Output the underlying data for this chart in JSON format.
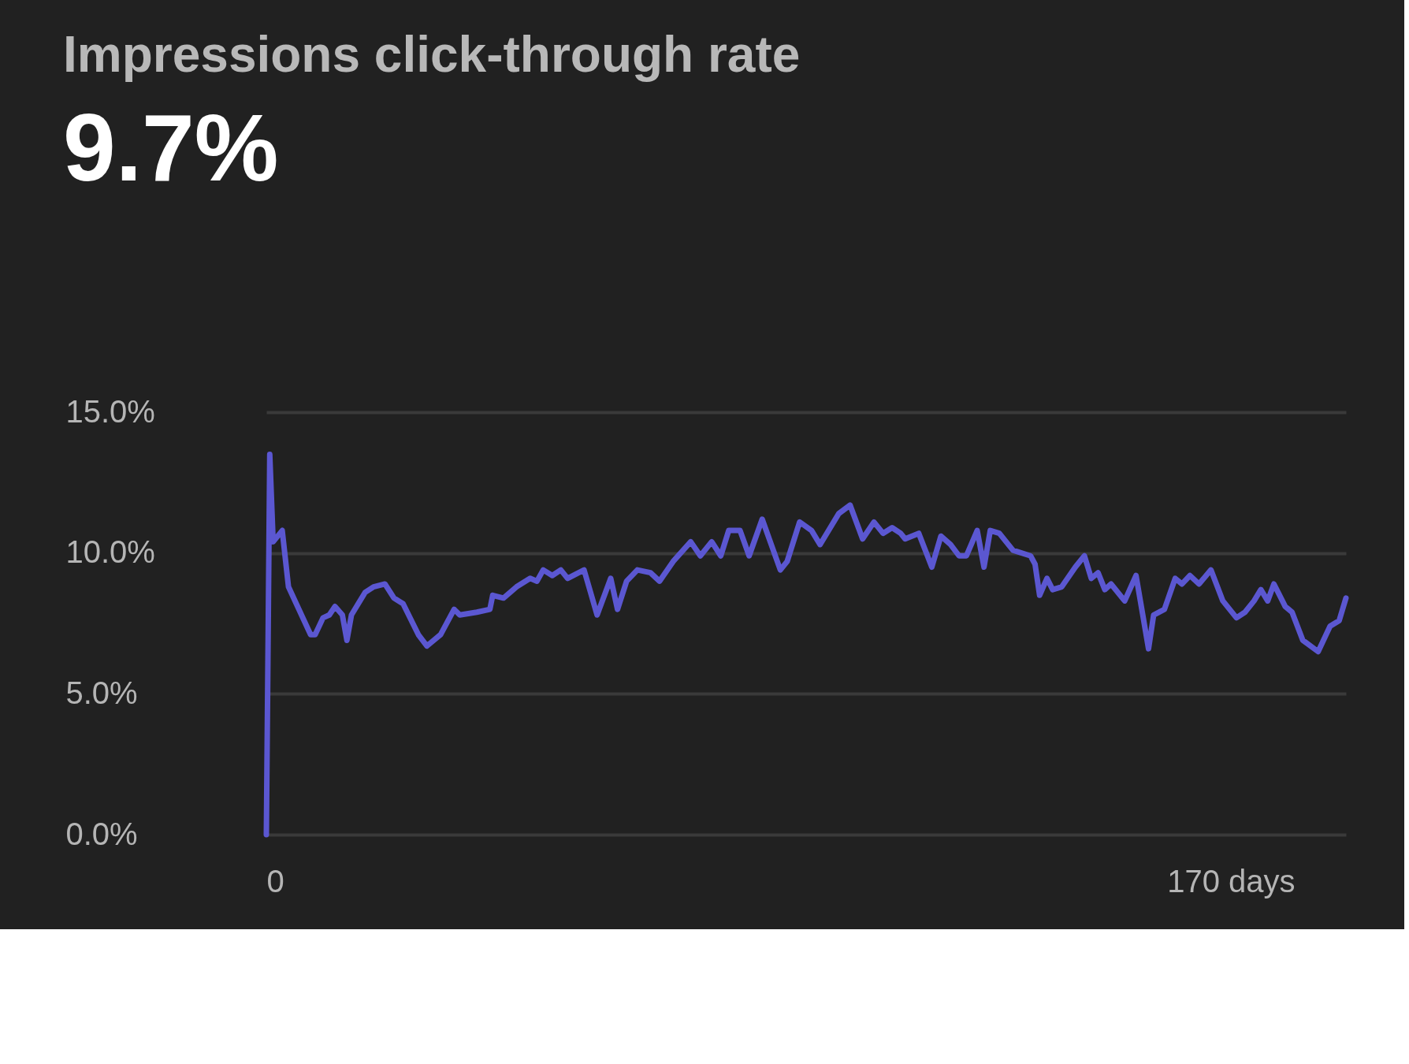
{
  "chart_data": {
    "type": "line",
    "title": "Impressions click-through rate",
    "subtitle": "9.7%",
    "x": [
      0,
      0.6,
      1.2,
      2.8,
      3.9,
      7.8,
      8.6,
      10.0,
      11.1,
      12.1,
      13.4,
      14.2,
      15.0,
      17.4,
      18.9,
      20.9,
      22.5,
      24.1,
      26.8,
      28.3,
      30.7,
      33.1,
      34.1,
      37.1,
      39.4,
      39.9,
      41.8,
      44.1,
      46.5,
      47.7,
      48.8,
      50.4,
      51.9,
      53.1,
      56.0,
      58.3,
      60.7,
      61.9,
      63.5,
      65.4,
      67.7,
      69.3,
      71.7,
      74.8,
      76.5,
      78.5,
      80.1,
      81.5,
      83.5,
      85.1,
      87.4,
      90.6,
      91.8,
      94.0,
      96.1,
      97.6,
      100.9,
      102.9,
      105.1,
      107.1,
      108.7,
      110.3,
      111.8,
      112.6,
      115.0,
      117.3,
      118.9,
      120.6,
      122.1,
      123.4,
      125.3,
      126.5,
      127.6,
      129.2,
      131.6,
      134.7,
      135.5,
      136.3,
      137.6,
      138.6,
      140.2,
      142.6,
      144.2,
      145.4,
      146.6,
      147.8,
      148.9,
      151.3,
      153.3,
      155.5,
      156.4,
      158.3,
      160.2,
      161.4,
      162.8,
      164.4,
      166.5,
      168.6,
      171.0,
      172.5,
      174.1,
      175.3,
      176.5,
      177.6,
      179.6,
      180.8,
      182.7,
      185.4,
      187.5,
      189.1,
      190.3
    ],
    "series": [
      {
        "color": "#5b57d1",
        "values": [
          0.0,
          13.5,
          10.4,
          10.8,
          8.8,
          7.1,
          7.1,
          7.7,
          7.8,
          8.1,
          7.8,
          6.9,
          7.8,
          8.6,
          8.8,
          8.9,
          8.4,
          8.2,
          7.1,
          6.7,
          7.1,
          8.0,
          7.8,
          7.9,
          8.0,
          8.5,
          8.4,
          8.8,
          9.1,
          9.0,
          9.4,
          9.2,
          9.4,
          9.1,
          9.4,
          7.8,
          9.1,
          8.0,
          9.0,
          9.4,
          9.3,
          9.0,
          9.7,
          10.4,
          9.9,
          10.4,
          9.9,
          10.8,
          10.8,
          9.9,
          11.2,
          9.4,
          9.7,
          11.1,
          10.8,
          10.3,
          11.4,
          11.7,
          10.5,
          11.1,
          10.7,
          10.9,
          10.7,
          10.5,
          10.7,
          9.5,
          10.6,
          10.3,
          9.9,
          9.9,
          10.8,
          9.5,
          10.8,
          10.7,
          10.1,
          9.9,
          9.6,
          8.5,
          9.1,
          8.7,
          8.8,
          9.5,
          9.9,
          9.1,
          9.3,
          8.7,
          8.9,
          8.3,
          9.2,
          6.6,
          7.8,
          8.0,
          9.1,
          8.9,
          9.2,
          8.9,
          9.4,
          8.3,
          7.7,
          7.9,
          8.3,
          8.7,
          8.3,
          8.9,
          8.1,
          7.9,
          6.9,
          6.5,
          7.4,
          7.6,
          8.4
        ]
      }
    ],
    "xlim": [
      0,
      190.3
    ],
    "xticks": [
      0,
      {
        "value": 170,
        "label": "170 days"
      }
    ],
    "ylim": [
      0,
      15
    ],
    "yticks": [
      {
        "value": 0,
        "label": "0.0%"
      },
      {
        "value": 5,
        "label": "5.0%"
      },
      {
        "value": 10,
        "label": "10.0%"
      },
      {
        "value": 15,
        "label": "15.0%"
      }
    ],
    "grid": "y",
    "line_style": "solid",
    "marker": "none"
  }
}
